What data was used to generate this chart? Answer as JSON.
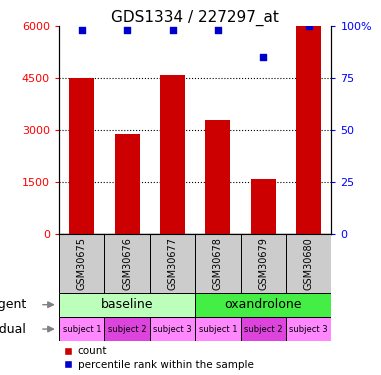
{
  "title": "GDS1334 / 227297_at",
  "samples": [
    "GSM30675",
    "GSM30676",
    "GSM30677",
    "GSM30678",
    "GSM30679",
    "GSM30680"
  ],
  "bar_values": [
    4500,
    2900,
    4600,
    3300,
    1600,
    6000
  ],
  "percentile_values": [
    98,
    98,
    98,
    98,
    85,
    100
  ],
  "left_ylim": [
    0,
    6000
  ],
  "right_ylim": [
    0,
    100
  ],
  "left_yticks": [
    0,
    1500,
    3000,
    4500,
    6000
  ],
  "right_yticks": [
    0,
    25,
    50,
    75,
    100
  ],
  "right_yticklabels": [
    "0",
    "25",
    "50",
    "75",
    "100%"
  ],
  "bar_color": "#cc0000",
  "dot_color": "#0000cc",
  "agent_labels": [
    "baseline",
    "oxandrolone"
  ],
  "agent_colors": [
    "#bbffbb",
    "#44ee44"
  ],
  "individual_colors_pattern": [
    "#ff88ff",
    "#dd44dd",
    "#ff88ff",
    "#ff88ff",
    "#dd44dd",
    "#ff88ff"
  ],
  "individual_labels": [
    "subject 1",
    "subject 2",
    "subject 3",
    "subject 1",
    "subject 2",
    "subject 3"
  ],
  "gsm_bg_color": "#cccccc",
  "tick_fontsize": 8,
  "title_fontsize": 11
}
